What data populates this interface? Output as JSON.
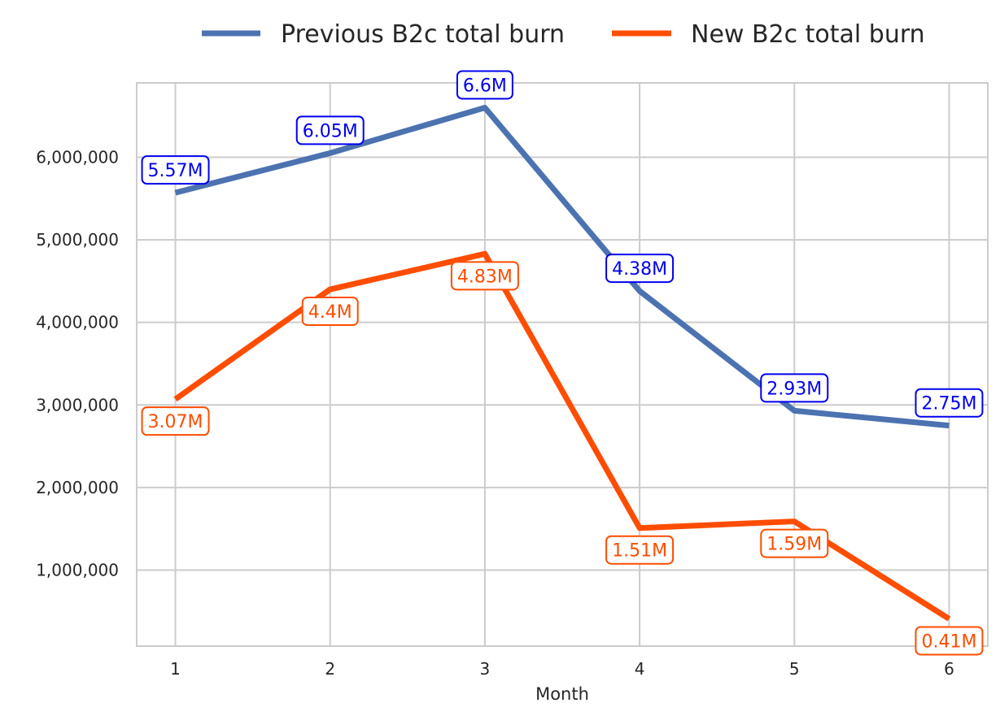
{
  "chart_data": {
    "type": "line",
    "title": "",
    "xlabel": "Month",
    "ylabel": "",
    "x": [
      1,
      2,
      3,
      4,
      5,
      6
    ],
    "x_tick_labels": [
      "1",
      "2",
      "3",
      "4",
      "5",
      "6"
    ],
    "y_ticks": [
      1000000,
      2000000,
      3000000,
      4000000,
      5000000,
      6000000
    ],
    "y_tick_labels": [
      "1,000,000",
      "2,000,000",
      "3,000,000",
      "4,000,000",
      "5,000,000",
      "6,000,000"
    ],
    "xlim": [
      0.75,
      6.25
    ],
    "ylim": [
      80000,
      6900000
    ],
    "grid": true,
    "legend_position": "top-center",
    "series": [
      {
        "name": "Previous B2c total burn",
        "color": "#4c72b0",
        "label_color": "#0000ee",
        "label_position": "above",
        "values": [
          5570000,
          6050000,
          6600000,
          4380000,
          2930000,
          2750000
        ],
        "data_labels": [
          "5.57M",
          "6.05M",
          "6.6M",
          "4.38M",
          "2.93M",
          "2.75M"
        ]
      },
      {
        "name": "New B2c total burn",
        "color": "#ff4d00",
        "label_color": "#ff4d00",
        "label_position": "below",
        "values": [
          3070000,
          4400000,
          4830000,
          1510000,
          1590000,
          410000
        ],
        "data_labels": [
          "3.07M",
          "4.4M",
          "4.83M",
          "1.51M",
          "1.59M",
          "0.41M"
        ]
      }
    ]
  }
}
